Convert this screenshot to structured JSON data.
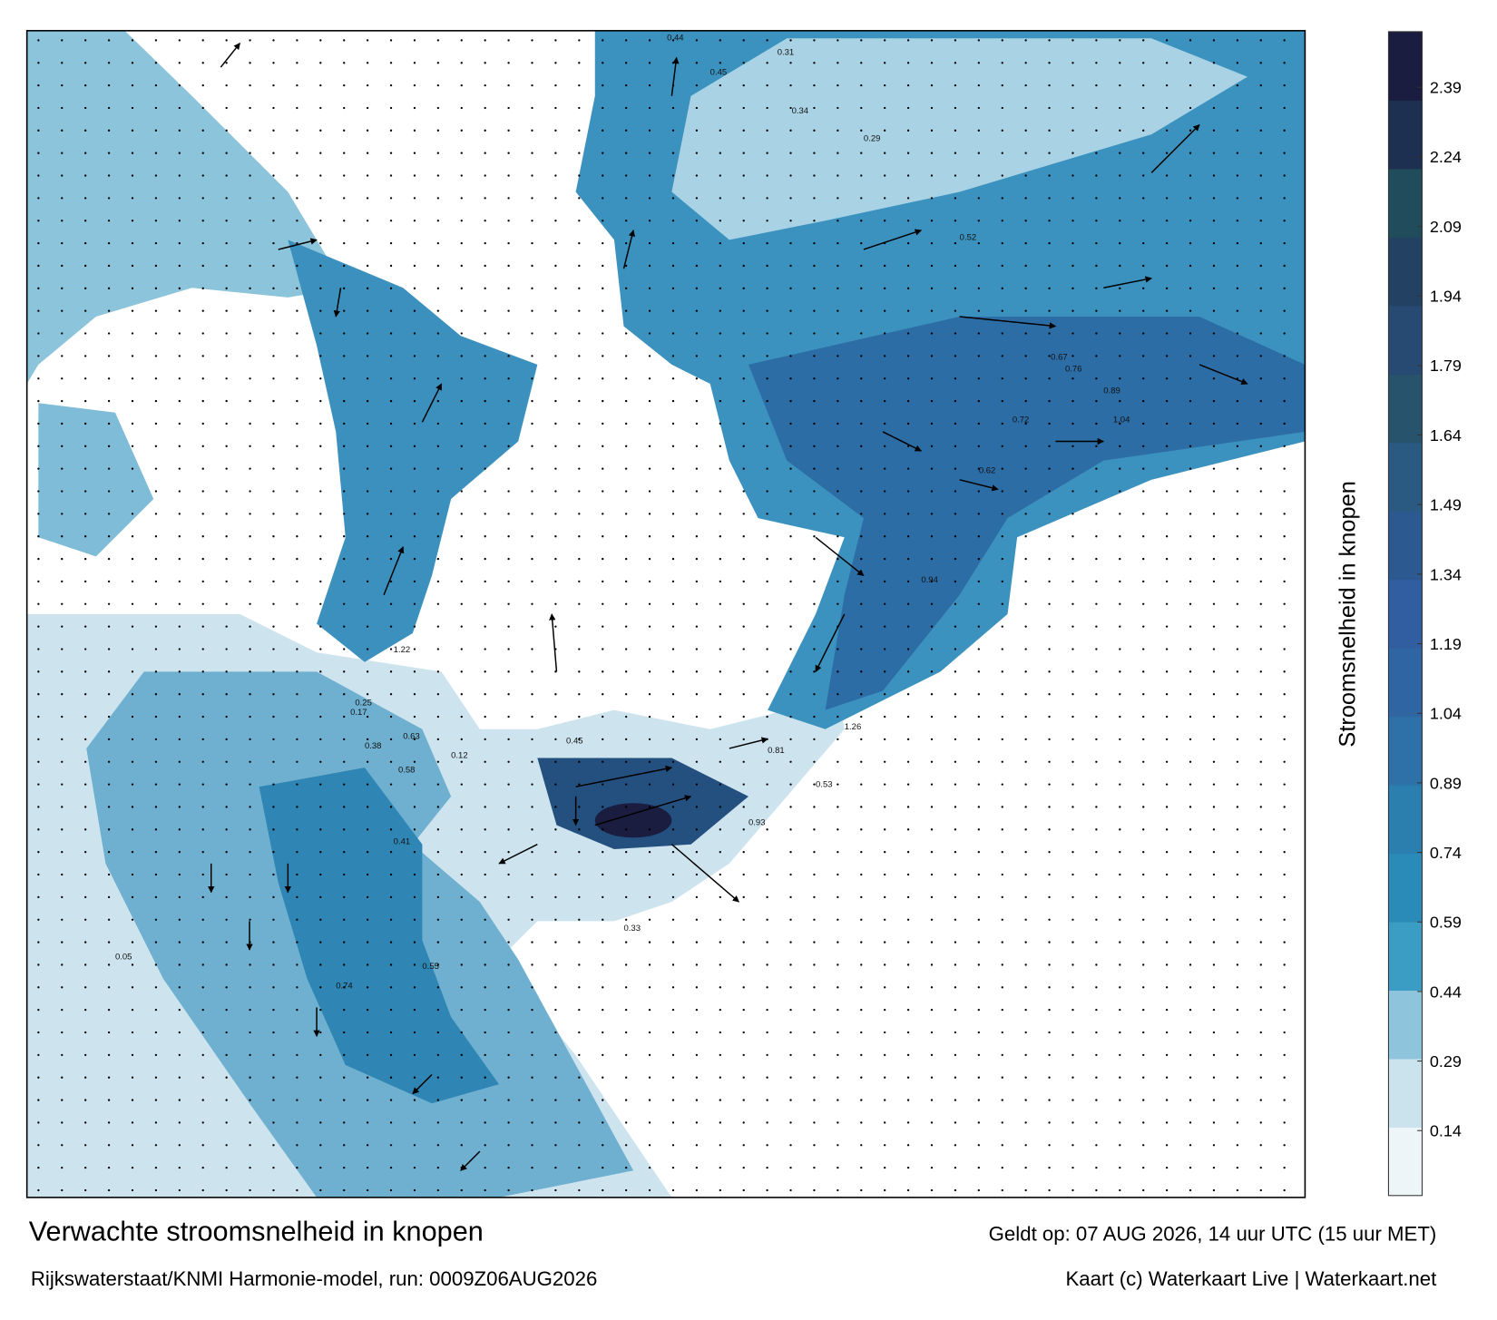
{
  "map": {
    "title": "Verwachte stroomsnelheid in knopen",
    "subtitle": "Rijkswaterstaat/KNMI Harmonie-model, run: 0009Z06AUG2026",
    "valid_time": "Geldt op: 07 AUG 2026, 14 uur UTC (15 uur MET)",
    "credit": "Kaart (c) Waterkaart Live | Waterkaart.net",
    "current_labels": [
      "0.44",
      "0.31",
      "0.45",
      "0.34",
      "0.29",
      "0.52",
      "0.67",
      "0.76",
      "0.89",
      "1.04",
      "0.72",
      "0.62",
      "0.94",
      "1.26",
      "0.81",
      "0.93",
      "0.53",
      "0.45",
      "0.63",
      "0.58",
      "0.38",
      "0.25",
      "0.17",
      "0.12",
      "0.05",
      "0.33",
      "0.41",
      "0.55",
      "0.74",
      "1.22"
    ]
  },
  "colorbar": {
    "label": "Stroomsnelheid in knopen",
    "lim": [
      0,
      2.51
    ],
    "ticks": [
      0.14,
      0.29,
      0.44,
      0.59,
      0.74,
      0.89,
      1.04,
      1.19,
      1.34,
      1.49,
      1.64,
      1.79,
      1.94,
      2.09,
      2.24,
      2.39
    ],
    "colors": [
      "#eef5f8",
      "#cbe3ed",
      "#8fc5dc",
      "#3b9cc4",
      "#2b8bb8",
      "#2a7fae",
      "#2e70a8",
      "#2f65a3",
      "#305ea0",
      "#2c5990",
      "#2a5a82",
      "#27536c",
      "#274a73",
      "#234263",
      "#204c5b",
      "#1d3052",
      "#1a1d3f"
    ]
  }
}
